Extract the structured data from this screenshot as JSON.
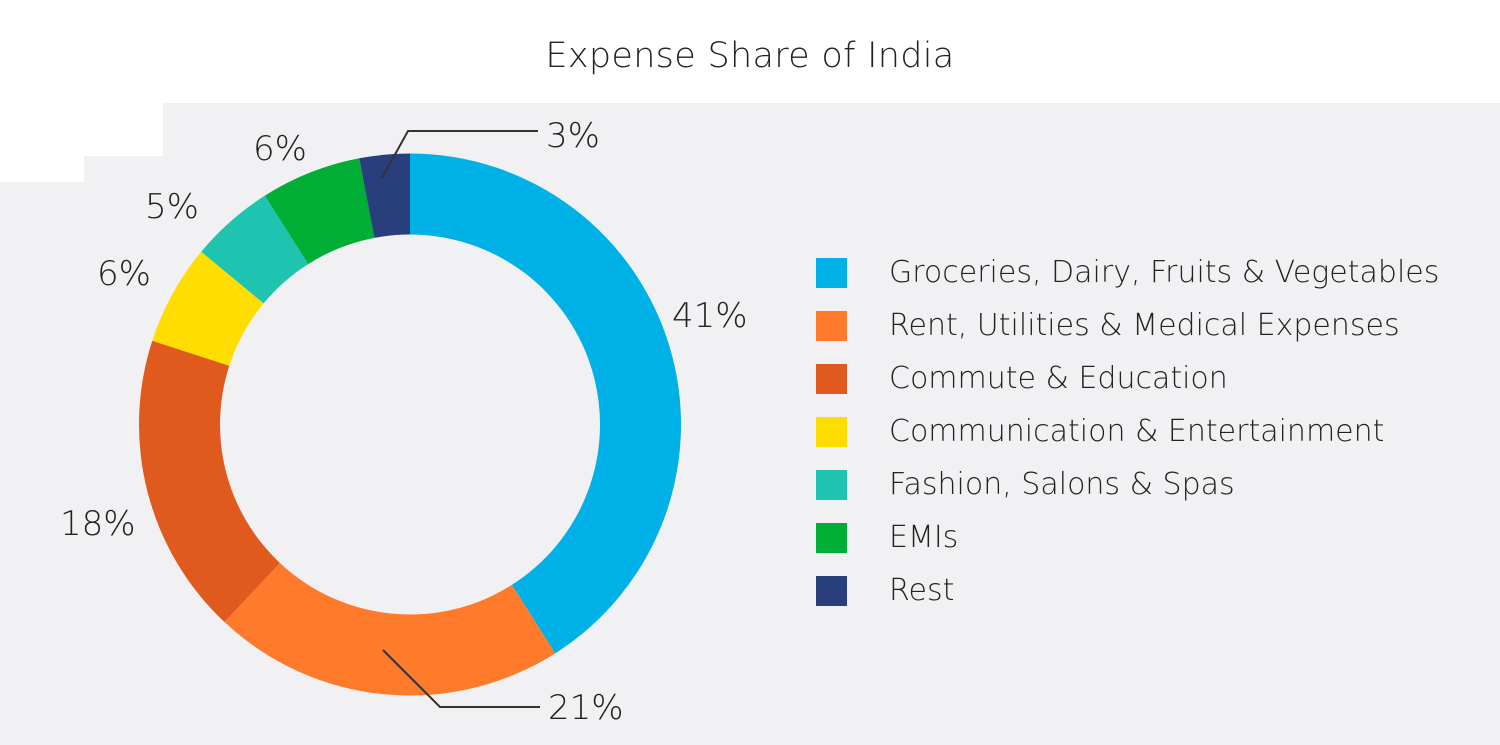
{
  "title": "Expense Share of India",
  "chart_data": {
    "type": "pie",
    "variant": "donut",
    "title": "Expense Share of India",
    "categories": [
      "Groceries, Dairy, Fruits & Vegetables",
      "Rent, Utilities & Medical Expenses",
      "Commute & Education",
      "Communication & Entertainment",
      "Fashion, Salons & Spas",
      "EMIs",
      "Rest"
    ],
    "values": [
      41,
      21,
      18,
      6,
      5,
      6,
      3
    ],
    "labels": [
      "41%",
      "21%",
      "18%",
      "6%",
      "5%",
      "6%",
      "3%"
    ],
    "colors": [
      "#00b1e7",
      "#ff7a2a",
      "#df5a1c",
      "#ffdd00",
      "#1fc4b0",
      "#00ae35",
      "#293f7b"
    ],
    "unit": "%",
    "start_angle": "12 o'clock, clockwise",
    "legend_position": "right"
  },
  "legend": {
    "items": [
      {
        "label": "Groceries, Dairy, Fruits & Vegetables",
        "color": "#00b1e7"
      },
      {
        "label": "Rent, Utilities & Medical Expenses",
        "color": "#ff7a2a"
      },
      {
        "label": "Commute & Education",
        "color": "#df5a1c"
      },
      {
        "label": "Communication & Entertainment",
        "color": "#ffdd00"
      },
      {
        "label": "Fashion, Salons & Spas",
        "color": "#1fc4b0"
      },
      {
        "label": "EMIs",
        "color": "#00ae35"
      },
      {
        "label": "Rest",
        "color": "#293f7b"
      }
    ]
  }
}
